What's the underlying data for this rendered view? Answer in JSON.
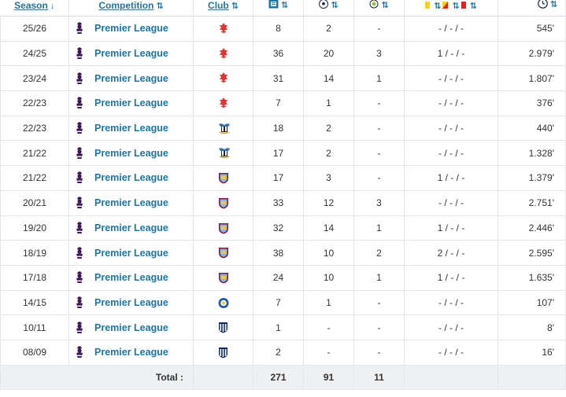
{
  "headers": {
    "season": "Season",
    "competition": "Competition",
    "club": "Club",
    "sort_glyph": "↓",
    "sort_glyph_alt": "↕"
  },
  "rows": [
    {
      "season": "25/26",
      "competition": "Premier League",
      "club_icon": "nottingham-forest-crest",
      "apps": "8",
      "goals": "2",
      "assists": "-",
      "cards": "- / - / -",
      "minutes": "545'"
    },
    {
      "season": "24/25",
      "competition": "Premier League",
      "club_icon": "nottingham-forest-crest",
      "apps": "36",
      "goals": "20",
      "assists": "3",
      "cards": "1 / - / -",
      "minutes": "2.979'"
    },
    {
      "season": "23/24",
      "competition": "Premier League",
      "club_icon": "nottingham-forest-crest",
      "apps": "31",
      "goals": "14",
      "assists": "1",
      "cards": "- / - / -",
      "minutes": "1.807'"
    },
    {
      "season": "22/23",
      "competition": "Premier League",
      "club_icon": "nottingham-forest-crest",
      "apps": "7",
      "goals": "1",
      "assists": "-",
      "cards": "- / - / -",
      "minutes": "376'"
    },
    {
      "season": "22/23",
      "competition": "Premier League",
      "club_icon": "newcastle-crest",
      "apps": "18",
      "goals": "2",
      "assists": "-",
      "cards": "- / - / -",
      "minutes": "440'"
    },
    {
      "season": "21/22",
      "competition": "Premier League",
      "club_icon": "newcastle-crest",
      "apps": "17",
      "goals": "2",
      "assists": "-",
      "cards": "- / - / -",
      "minutes": "1.328'"
    },
    {
      "season": "21/22",
      "competition": "Premier League",
      "club_icon": "burnley-crest",
      "apps": "17",
      "goals": "3",
      "assists": "-",
      "cards": "1 / - / -",
      "minutes": "1.379'"
    },
    {
      "season": "20/21",
      "competition": "Premier League",
      "club_icon": "burnley-crest",
      "apps": "33",
      "goals": "12",
      "assists": "3",
      "cards": "- / - / -",
      "minutes": "2.751'"
    },
    {
      "season": "19/20",
      "competition": "Premier League",
      "club_icon": "burnley-crest",
      "apps": "32",
      "goals": "14",
      "assists": "1",
      "cards": "1 / - / -",
      "minutes": "2.446'"
    },
    {
      "season": "18/19",
      "competition": "Premier League",
      "club_icon": "burnley-crest",
      "apps": "38",
      "goals": "10",
      "assists": "2",
      "cards": "2 / - / -",
      "minutes": "2.595'"
    },
    {
      "season": "17/18",
      "competition": "Premier League",
      "club_icon": "burnley-crest",
      "apps": "24",
      "goals": "10",
      "assists": "1",
      "cards": "1 / - / -",
      "minutes": "1.635'"
    },
    {
      "season": "14/15",
      "competition": "Premier League",
      "club_icon": "leicester-crest",
      "apps": "7",
      "goals": "1",
      "assists": "-",
      "cards": "- / - / -",
      "minutes": "107'"
    },
    {
      "season": "10/11",
      "competition": "Premier League",
      "club_icon": "west-brom-crest",
      "apps": "1",
      "goals": "-",
      "assists": "-",
      "cards": "- / - / -",
      "minutes": "8'"
    },
    {
      "season": "08/09",
      "competition": "Premier League",
      "club_icon": "west-brom-crest",
      "apps": "2",
      "goals": "-",
      "assists": "-",
      "cards": "- / - / -",
      "minutes": "16'"
    }
  ],
  "total": {
    "label": "Total :",
    "apps": "271",
    "goals": "91",
    "assists": "11"
  },
  "colors": {
    "link": "#1d75a3",
    "premier_league_purple": "#3d195b",
    "forest_red": "#e53233",
    "burnley_claret": "#8a1538",
    "burnley_blue": "#7fb7e0",
    "newcastle_black": "#222222",
    "leicester_blue": "#1d5ba4",
    "west_brom_navy": "#122f67",
    "total_bg": "#eef0f2"
  }
}
